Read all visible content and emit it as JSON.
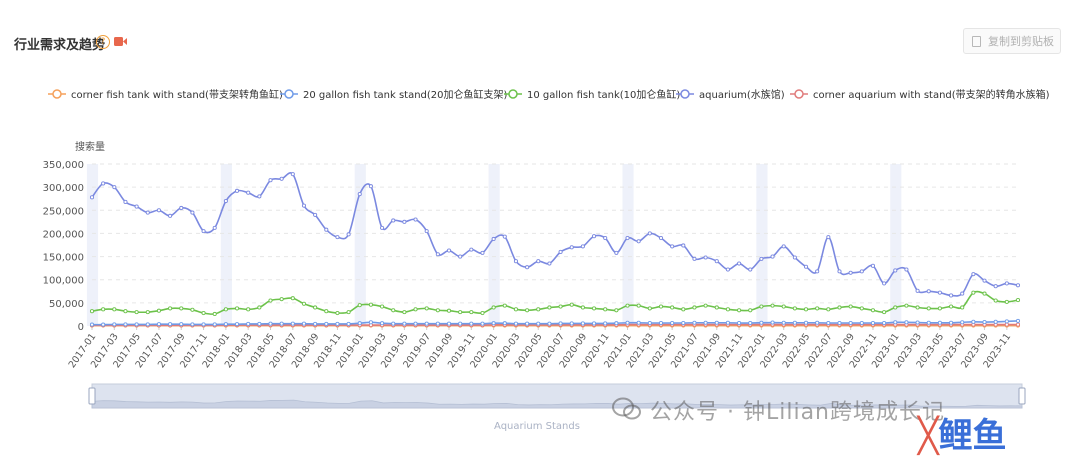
{
  "header": {
    "title": "行业需求及趋势",
    "help_glyph": "?",
    "copy_label": "复制到剪贴板",
    "icons": [
      "help-icon",
      "video-icon",
      "copy-icon"
    ]
  },
  "watermark": {
    "text": "公众号 · 钟Lilian跨境成长记",
    "logo_text": "鲤鱼"
  },
  "slider": {
    "label": "Aquarium Stands"
  },
  "chart_data": {
    "type": "line",
    "title": "",
    "ylabel": "搜索量",
    "xlabel": "",
    "ylim": [
      0,
      350000
    ],
    "yticks": [
      "0",
      "50,000",
      "100,000",
      "150,000",
      "200,000",
      "250,000",
      "300,000",
      "350,000"
    ],
    "ytick_values": [
      0,
      50000,
      100000,
      150000,
      200000,
      250000,
      300000,
      350000
    ],
    "grid": "horizontal-dashed",
    "legend_position": "top",
    "x": [
      "2017-01",
      "2017-02",
      "2017-03",
      "2017-04",
      "2017-05",
      "2017-06",
      "2017-07",
      "2017-08",
      "2017-09",
      "2017-10",
      "2017-11",
      "2017-12",
      "2018-01",
      "2018-02",
      "2018-03",
      "2018-04",
      "2018-05",
      "2018-06",
      "2018-07",
      "2018-08",
      "2018-09",
      "2018-10",
      "2018-11",
      "2018-12",
      "2019-01",
      "2019-02",
      "2019-03",
      "2019-04",
      "2019-05",
      "2019-06",
      "2019-07",
      "2019-08",
      "2019-09",
      "2019-10",
      "2019-11",
      "2019-12",
      "2020-01",
      "2020-02",
      "2020-03",
      "2020-04",
      "2020-05",
      "2020-06",
      "2020-07",
      "2020-08",
      "2020-09",
      "2020-10",
      "2020-11",
      "2020-12",
      "2021-01",
      "2021-02",
      "2021-03",
      "2021-04",
      "2021-05",
      "2021-06",
      "2021-07",
      "2021-08",
      "2021-09",
      "2021-10",
      "2021-11",
      "2021-12",
      "2022-01",
      "2022-02",
      "2022-03",
      "2022-04",
      "2022-05",
      "2022-06",
      "2022-07",
      "2022-08",
      "2022-09",
      "2022-10",
      "2022-11",
      "2022-12",
      "2023-01",
      "2023-02",
      "2023-03",
      "2023-04",
      "2023-05",
      "2023-06",
      "2023-07",
      "2023-08",
      "2023-09",
      "2023-10",
      "2023-11",
      "2023-12"
    ],
    "xtick_labels": [
      "2017-01",
      "2017-03",
      "2017-05",
      "2017-07",
      "2017-09",
      "2017-11",
      "2018-01",
      "2018-03",
      "2018-05",
      "2018-07",
      "2018-09",
      "2018-11",
      "2019-01",
      "2019-03",
      "2019-05",
      "2019-07",
      "2019-09",
      "2019-11",
      "2020-01",
      "2020-03",
      "2020-05",
      "2020-07",
      "2020-09",
      "2020-11",
      "2021-01",
      "2021-03",
      "2021-05",
      "2021-07",
      "2021-09",
      "2021-11",
      "2022-01",
      "2022-03",
      "2022-05",
      "2022-07",
      "2022-09",
      "2022-11",
      "2023-01",
      "2023-03",
      "2023-05",
      "2023-07",
      "2023-09",
      "2023-11"
    ],
    "highlight_months": [
      "2017-01",
      "2018-01",
      "2019-01",
      "2020-01",
      "2021-01",
      "2022-01",
      "2023-01"
    ],
    "series": [
      {
        "name": "corner fish tank with stand(带支架转角鱼缸)",
        "color": "#f5a05a",
        "values": [
          1000,
          1000,
          1000,
          1000,
          1000,
          1000,
          1000,
          1000,
          1000,
          1000,
          1000,
          1000,
          1000,
          1000,
          1000,
          1000,
          1000,
          1000,
          1000,
          1000,
          1000,
          1000,
          1000,
          1000,
          1000,
          1000,
          1000,
          1000,
          1000,
          1000,
          1000,
          1000,
          1000,
          1000,
          1000,
          1000,
          1000,
          1000,
          1000,
          1000,
          1000,
          1000,
          1000,
          1000,
          1000,
          1000,
          1000,
          1000,
          1000,
          1000,
          1000,
          1000,
          1000,
          1000,
          1000,
          1000,
          1000,
          1000,
          1000,
          1000,
          1000,
          1000,
          1000,
          1000,
          1000,
          1000,
          1000,
          1000,
          1000,
          1000,
          1000,
          1000,
          1000,
          1000,
          1000,
          1000,
          1000,
          1000,
          1000,
          1000,
          1000,
          1000,
          1000,
          1000
        ]
      },
      {
        "name": "20 gallon fish tank stand(20加仑鱼缸支架)",
        "color": "#6f9be8",
        "values": [
          3000,
          3000,
          3500,
          3500,
          3500,
          3500,
          4000,
          4000,
          4000,
          3500,
          3500,
          3500,
          4000,
          4000,
          4500,
          4500,
          5000,
          5000,
          5000,
          5000,
          4500,
          4500,
          4500,
          4500,
          6000,
          8000,
          6000,
          5000,
          5000,
          5000,
          5000,
          5000,
          5000,
          5000,
          5000,
          5000,
          6000,
          6000,
          5000,
          5000,
          5000,
          5000,
          5500,
          5500,
          5500,
          5500,
          5500,
          6000,
          7000,
          7000,
          6500,
          6500,
          6500,
          6500,
          7000,
          7000,
          7000,
          7000,
          6500,
          6500,
          7000,
          7500,
          7000,
          7000,
          7000,
          7000,
          6500,
          6500,
          6500,
          6500,
          6500,
          6500,
          8000,
          8000,
          7500,
          7000,
          7000,
          7000,
          8000,
          9000,
          8500,
          9000,
          10000,
          11000
        ]
      },
      {
        "name": "10 gallon fish tank(10加仑鱼缸)",
        "color": "#6cc24a",
        "values": [
          32000,
          36000,
          36000,
          32000,
          30000,
          30000,
          33000,
          38000,
          38000,
          35000,
          28000,
          26000,
          36000,
          38000,
          36000,
          40000,
          55000,
          58000,
          60000,
          48000,
          40000,
          32000,
          28000,
          30000,
          45000,
          46000,
          42000,
          34000,
          30000,
          36000,
          38000,
          34000,
          33000,
          30000,
          30000,
          28000,
          40000,
          44000,
          36000,
          34000,
          36000,
          40000,
          42000,
          46000,
          40000,
          38000,
          36000,
          34000,
          44000,
          44000,
          38000,
          42000,
          40000,
          36000,
          40000,
          44000,
          40000,
          36000,
          34000,
          34000,
          42000,
          44000,
          42000,
          38000,
          36000,
          38000,
          36000,
          40000,
          42000,
          38000,
          34000,
          30000,
          40000,
          44000,
          40000,
          38000,
          38000,
          42000,
          40000,
          72000,
          70000,
          55000,
          52000,
          56000
        ]
      },
      {
        "name": "aquarium(水族馆)",
        "color": "#7b89e0",
        "values": [
          278000,
          308000,
          300000,
          268000,
          258000,
          245000,
          250000,
          238000,
          255000,
          245000,
          205000,
          212000,
          270000,
          292000,
          288000,
          280000,
          315000,
          318000,
          328000,
          260000,
          240000,
          208000,
          192000,
          198000,
          285000,
          302000,
          212000,
          228000,
          225000,
          230000,
          205000,
          155000,
          163000,
          150000,
          165000,
          158000,
          188000,
          193000,
          140000,
          127000,
          140000,
          135000,
          160000,
          170000,
          172000,
          194000,
          190000,
          158000,
          190000,
          183000,
          200000,
          190000,
          172000,
          174000,
          145000,
          148000,
          140000,
          122000,
          135000,
          122000,
          145000,
          150000,
          172000,
          148000,
          128000,
          118000,
          192000,
          118000,
          115000,
          118000,
          130000,
          92000,
          120000,
          122000,
          76000,
          75000,
          72000,
          66000,
          70000,
          112000,
          98000,
          86000,
          92000,
          88000
        ]
      },
      {
        "name": "corner aquarium with stand(带支架的转角水族箱)",
        "color": "#e07b7b",
        "values": [
          1500,
          1500,
          1500,
          1500,
          1500,
          1500,
          1500,
          1500,
          1500,
          1500,
          1500,
          1500,
          2000,
          2000,
          2000,
          2000,
          2000,
          2000,
          2000,
          2000,
          2000,
          2000,
          2000,
          2000,
          2000,
          2000,
          2000,
          2000,
          2000,
          2000,
          2000,
          2000,
          2000,
          2000,
          2000,
          2000,
          2500,
          2500,
          2500,
          2500,
          2500,
          2500,
          2500,
          2500,
          2500,
          2500,
          2500,
          2500,
          3000,
          3000,
          3000,
          3000,
          3000,
          3000,
          3000,
          3000,
          3000,
          3000,
          3000,
          3000,
          3000,
          3000,
          3000,
          3000,
          3000,
          3000,
          3000,
          3000,
          3000,
          3000,
          3000,
          3000,
          3000,
          3000,
          3000,
          3000,
          3000,
          3000,
          3000,
          3000,
          3000,
          3000,
          3000,
          3000
        ]
      }
    ]
  }
}
